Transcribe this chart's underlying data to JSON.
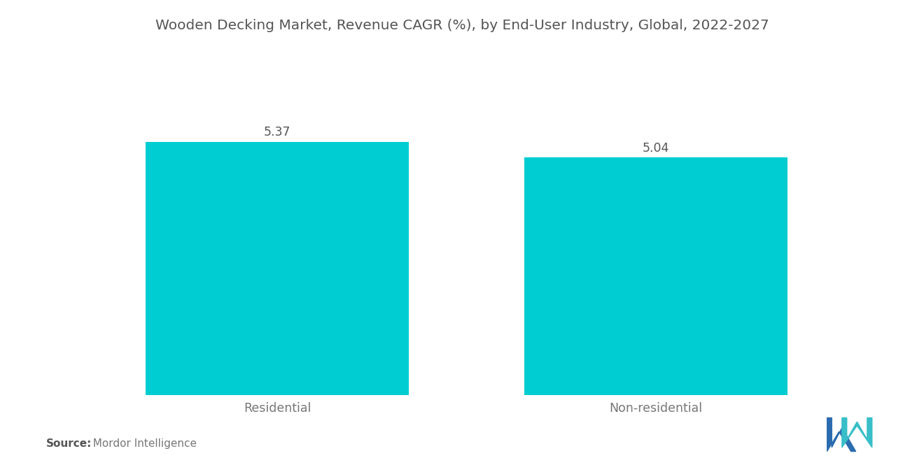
{
  "title": "Wooden Decking Market, Revenue CAGR (%), by End-User Industry, Global, 2022-2027",
  "categories": [
    "Residential",
    "Non-residential"
  ],
  "values": [
    5.37,
    5.04
  ],
  "bar_color": "#00CDD1",
  "value_labels": [
    "5.37",
    "5.04"
  ],
  "background_color": "#ffffff",
  "title_fontsize": 14.5,
  "label_fontsize": 12.5,
  "value_fontsize": 12.5,
  "source_bold": "Source:",
  "source_rest": "  Mordor Intelligence",
  "ylim": [
    0,
    7.2
  ],
  "bar_width": 0.32,
  "bar_positions": [
    0.27,
    0.73
  ],
  "xlim": [
    0,
    1
  ]
}
